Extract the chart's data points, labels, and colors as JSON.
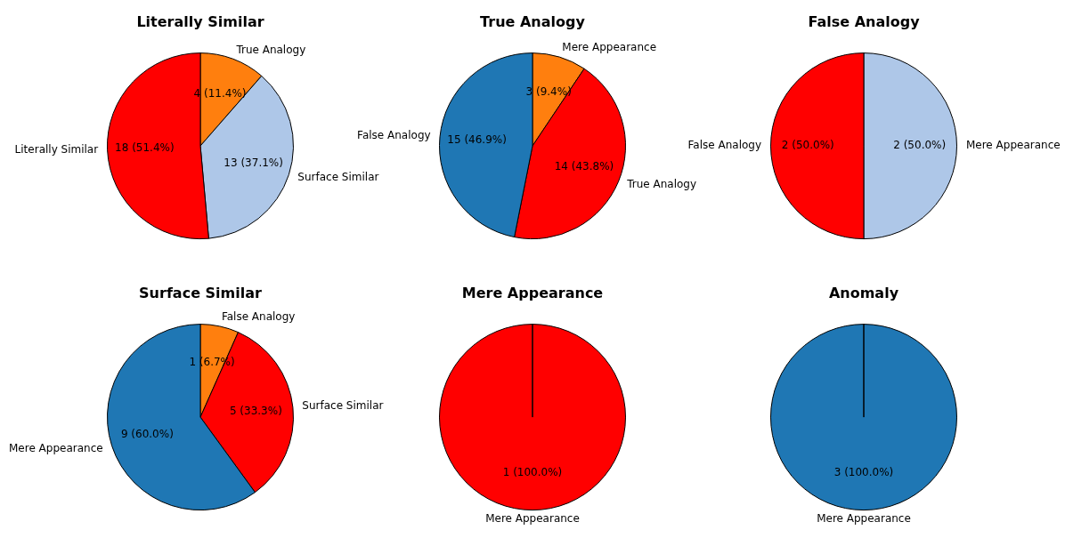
{
  "chart_data": [
    {
      "type": "pie",
      "title": "Literally Similar",
      "categories": [
        "True Analogy",
        "Surface Similar",
        "Literally Similar"
      ],
      "values": [
        4,
        13,
        18
      ],
      "colors": [
        "#ff7f0e",
        "#aec7e8",
        "#ff0000"
      ],
      "value_labels": [
        "4 (11.4%)",
        "13 (37.1%)",
        "18 (51.4%)"
      ],
      "legend": false
    },
    {
      "type": "pie",
      "title": "True Analogy",
      "categories": [
        "Mere Appearance",
        "True Analogy",
        "False Analogy"
      ],
      "values": [
        3,
        14,
        15
      ],
      "colors": [
        "#ff7f0e",
        "#ff0000",
        "#1f77b4"
      ],
      "value_labels": [
        "3 (9.4%)",
        "14 (43.8%)",
        "15 (46.9%)"
      ],
      "legend": false
    },
    {
      "type": "pie",
      "title": "False Analogy",
      "categories": [
        "Mere Appearance",
        "False Analogy"
      ],
      "values": [
        2,
        2
      ],
      "colors": [
        "#aec7e8",
        "#ff0000"
      ],
      "value_labels": [
        "2 (50.0%)",
        "2 (50.0%)"
      ],
      "legend": false
    },
    {
      "type": "pie",
      "title": "Surface Similar",
      "categories": [
        "False Analogy",
        "Surface Similar",
        "Mere Appearance"
      ],
      "values": [
        1,
        5,
        9
      ],
      "colors": [
        "#ff7f0e",
        "#ff0000",
        "#1f77b4"
      ],
      "value_labels": [
        "1 (6.7%)",
        "5 (33.3%)",
        "9 (60.0%)"
      ],
      "legend": false
    },
    {
      "type": "pie",
      "title": "Mere Appearance",
      "categories": [
        "Mere Appearance"
      ],
      "values": [
        1
      ],
      "colors": [
        "#ff0000"
      ],
      "value_labels": [
        "1 (100.0%)"
      ],
      "legend": false
    },
    {
      "type": "pie",
      "title": "Anomaly",
      "categories": [
        "Mere Appearance"
      ],
      "values": [
        3
      ],
      "colors": [
        "#1f77b4"
      ],
      "value_labels": [
        "3 (100.0%)"
      ],
      "legend": false
    }
  ]
}
